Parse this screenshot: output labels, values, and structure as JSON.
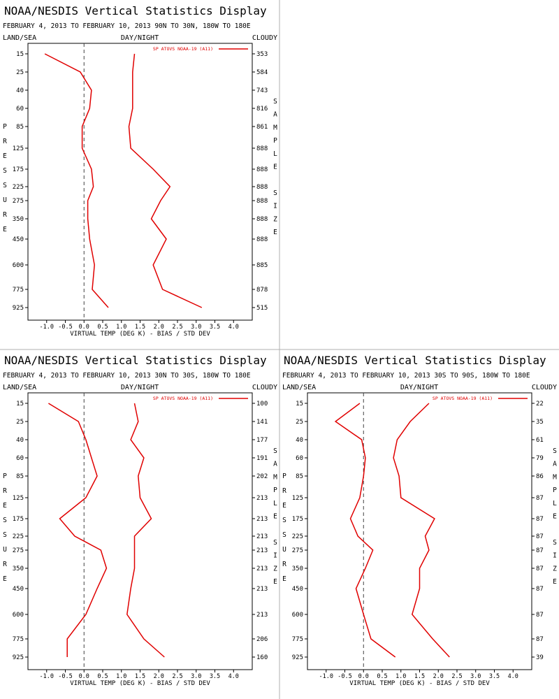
{
  "colors": {
    "series": "#e00000",
    "axis": "#000000",
    "zero_line": "#404040",
    "divider": "#b0b0b0",
    "background": "#ffffff"
  },
  "chart_data": [
    {
      "type": "line",
      "title": "NOAA/NESDIS Vertical Statistics Display",
      "subtitle": "FEBRUARY 4, 2013 TO FEBRUARY 10, 2013 90N TO 30N, 180W TO 180E",
      "header_left": "LAND/SEA",
      "header_center": "DAY/NIGHT",
      "header_right": "CLOUDY",
      "xlabel": "VIRTUAL TEMP (DEG K) - BIAS / STD DEV",
      "ylabel": "PRESSURE",
      "y2label": "SAMPLE SIZE",
      "xlim": [
        -1.5,
        4.5
      ],
      "xticks": [
        "-1.0",
        "-0.5",
        "0.0",
        "0.5",
        "1.0",
        "1.5",
        "2.0",
        "2.5",
        "3.0",
        "3.5",
        "4.0"
      ],
      "levels": [
        "15",
        "25",
        "40",
        "60",
        "85",
        "125",
        "175",
        "225",
        "275",
        "350",
        "450",
        "600",
        "775",
        "925"
      ],
      "sample_size": [
        "353",
        "584",
        "743",
        "816",
        "861",
        "888",
        "888",
        "888",
        "888",
        "888",
        "888",
        "885",
        "878",
        "515"
      ],
      "legend": "SP ATOVS NOAA-19 (A11)",
      "legend_position": "top-right",
      "series": [
        {
          "values": [
            -1.05,
            -0.1,
            0.2,
            0.15,
            -0.05,
            -0.05,
            0.2,
            0.25,
            0.1,
            0.1,
            0.15,
            0.28,
            0.22,
            0.65
          ]
        },
        {
          "values": [
            1.35,
            1.3,
            1.3,
            1.3,
            1.2,
            1.25,
            1.85,
            2.3,
            2.05,
            1.8,
            2.2,
            1.85,
            2.1,
            3.15
          ]
        }
      ]
    },
    {
      "type": "line",
      "title": "NOAA/NESDIS Vertical Statistics Display",
      "subtitle": "FEBRUARY 4, 2013 TO FEBRUARY 10, 2013 30N TO 30S, 180W TO 180E",
      "header_left": "LAND/SEA",
      "header_center": "DAY/NIGHT",
      "header_right": "CLOUDY",
      "xlabel": "VIRTUAL TEMP (DEG K) - BIAS / STD DEV",
      "ylabel": "PRESSURE",
      "y2label": "SAMPLE SIZE",
      "xlim": [
        -1.5,
        4.5
      ],
      "xticks": [
        "-1.0",
        "-0.5",
        "0.0",
        "0.5",
        "1.0",
        "1.5",
        "2.0",
        "2.5",
        "3.0",
        "3.5",
        "4.0"
      ],
      "levels": [
        "15",
        "25",
        "40",
        "60",
        "85",
        "125",
        "175",
        "225",
        "275",
        "350",
        "450",
        "600",
        "775",
        "925"
      ],
      "sample_size": [
        "100",
        "141",
        "177",
        "191",
        "202",
        "213",
        "213",
        "213",
        "213",
        "213",
        "213",
        "213",
        "206",
        "160"
      ],
      "legend": "SP ATOVS NOAA-19 (A11)",
      "legend_position": "top-right",
      "series": [
        {
          "values": [
            -0.95,
            -0.15,
            0.05,
            0.2,
            0.35,
            0.05,
            -0.65,
            -0.25,
            0.45,
            0.6,
            0.35,
            0.05,
            -0.45,
            -0.45
          ]
        },
        {
          "values": [
            1.35,
            1.45,
            1.25,
            1.6,
            1.45,
            1.5,
            1.8,
            1.35,
            1.35,
            1.35,
            1.25,
            1.15,
            1.6,
            2.15
          ]
        }
      ]
    },
    {
      "type": "line",
      "title": "NOAA/NESDIS Vertical Statistics Display",
      "subtitle": "FEBRUARY 4, 2013 TO FEBRUARY 10, 2013 30S TO 90S, 180W TO 180E",
      "header_left": "LAND/SEA",
      "header_center": "DAY/NIGHT",
      "header_right": "CLOUDY",
      "xlabel": "VIRTUAL TEMP (DEG K) - BIAS / STD DEV",
      "ylabel": "PRESSURE",
      "y2label": "SAMPLE SIZE",
      "xlim": [
        -1.5,
        4.5
      ],
      "xticks": [
        "-1.0",
        "-0.5",
        "0.0",
        "0.5",
        "1.0",
        "1.5",
        "2.0",
        "2.5",
        "3.0",
        "3.5",
        "4.0"
      ],
      "levels": [
        "15",
        "25",
        "40",
        "60",
        "85",
        "125",
        "175",
        "225",
        "275",
        "350",
        "450",
        "600",
        "775",
        "925"
      ],
      "sample_size": [
        "22",
        "35",
        "61",
        "79",
        "86",
        "87",
        "87",
        "87",
        "87",
        "87",
        "87",
        "87",
        "87",
        "39"
      ],
      "legend": "SP ATOVS NOAA-19 (A11)",
      "legend_position": "top-right",
      "series": [
        {
          "values": [
            -0.1,
            -0.75,
            -0.05,
            0.05,
            0.0,
            -0.1,
            -0.35,
            -0.15,
            0.25,
            0.05,
            -0.2,
            0.0,
            0.2,
            0.85
          ]
        },
        {
          "values": [
            1.75,
            1.25,
            0.9,
            0.8,
            0.95,
            1.0,
            1.9,
            1.65,
            1.75,
            1.5,
            1.5,
            1.3,
            1.85,
            2.3
          ]
        }
      ]
    }
  ]
}
